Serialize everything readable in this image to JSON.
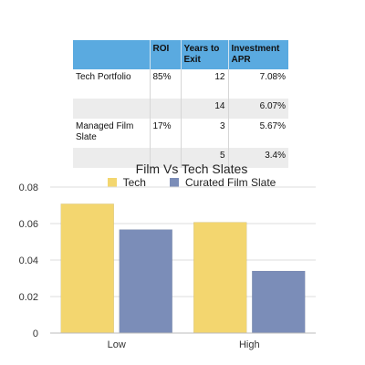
{
  "table": {
    "headers": [
      "",
      "ROI",
      "Years to Exit",
      "Investment APR"
    ],
    "rows": [
      [
        "Tech Portfolio",
        "85%",
        "12",
        "7.08%"
      ],
      [
        "",
        "",
        "14",
        "6.07%"
      ],
      [
        "Managed Film Slate",
        "17%",
        "3",
        "5.67%"
      ],
      [
        "",
        "",
        "5",
        "3.4%"
      ]
    ]
  },
  "chart_data": {
    "type": "bar",
    "title": "Film Vs Tech Slates",
    "categories": [
      "Low",
      "High"
    ],
    "series": [
      {
        "name": "Tech",
        "values": [
          0.0708,
          0.0607
        ],
        "color": "#f3d66f"
      },
      {
        "name": "Curated Film Slate",
        "values": [
          0.0567,
          0.034
        ],
        "color": "#7b8db8"
      }
    ],
    "ylim": [
      0,
      0.08
    ],
    "yticks": [
      "0",
      "0.02",
      "0.04",
      "0.06",
      "0.08"
    ],
    "grid": true,
    "legend": "top"
  }
}
